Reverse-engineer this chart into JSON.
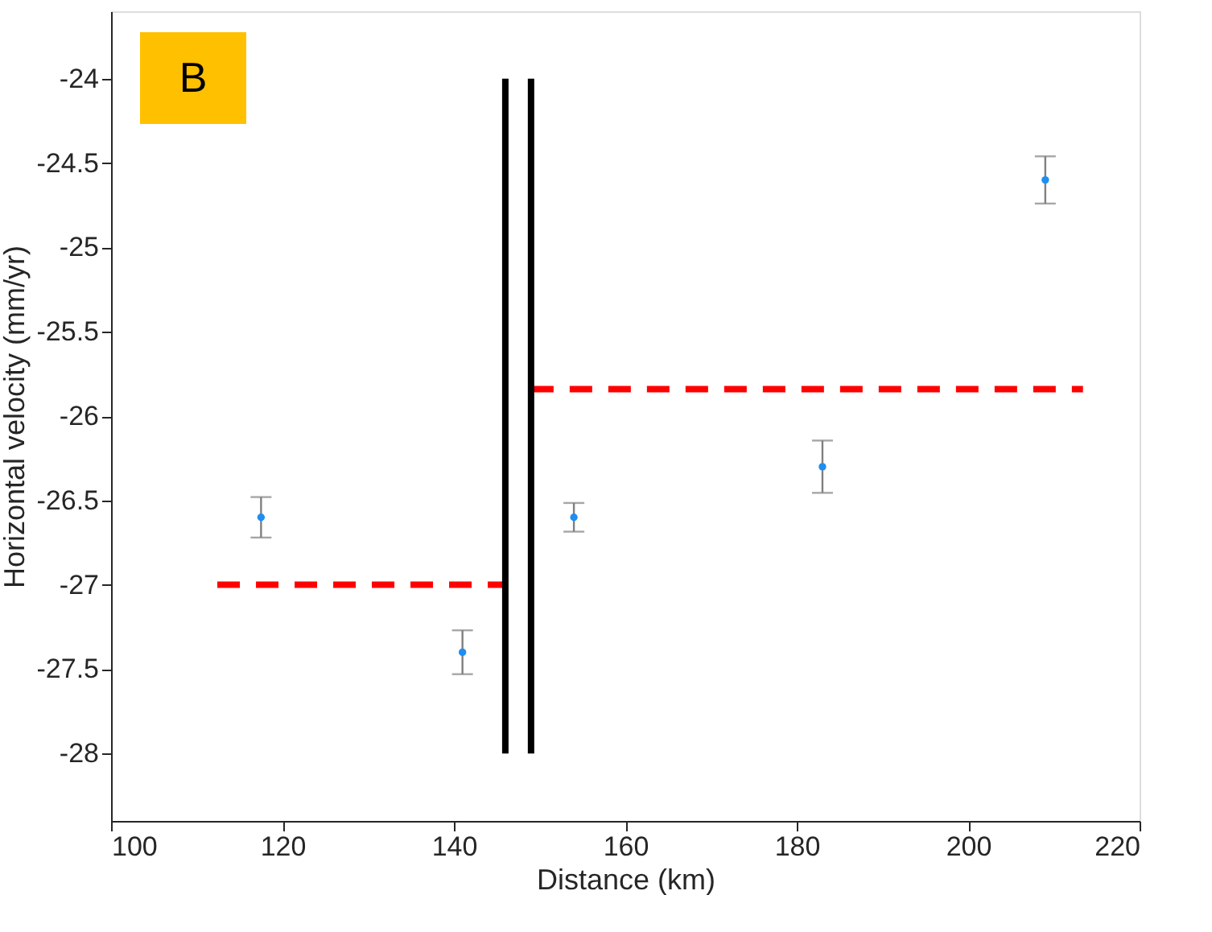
{
  "chart_data": {
    "type": "scatter",
    "xlabel": "Distance (km)",
    "ylabel": "Horizontal velocity (mm/yr)",
    "annotations": [
      "B"
    ],
    "xlim": [
      100,
      220
    ],
    "xticks": [
      100,
      120,
      140,
      160,
      180,
      200,
      220
    ],
    "ylim": [
      -28.4,
      -23.6
    ],
    "yticks": [
      -28,
      -27.5,
      -27,
      -26.5,
      -26,
      -25.5,
      -25,
      -24.5,
      -24
    ],
    "grid": false,
    "series": [
      {
        "type": "scatter",
        "color": "#1f8ef1",
        "x": [
          117.5,
          141,
          154,
          183,
          209
        ],
        "values": [
          -26.6,
          -27.4,
          -26.6,
          -26.3,
          -24.6
        ],
        "errors": [
          0.12,
          0.13,
          0.085,
          0.155,
          0.14
        ],
        "marker": "circle"
      },
      {
        "type": "line",
        "color": "#ff0000",
        "line_style": "dashed",
        "x": [
          112.4,
          146
        ],
        "values": [
          -27,
          -27
        ]
      },
      {
        "type": "line",
        "color": "#ff0000",
        "line_style": "dashed",
        "x": [
          149,
          213.4
        ],
        "values": [
          -25.84,
          -25.84
        ]
      },
      {
        "type": "line",
        "color": "#000000",
        "line_style": "solid",
        "x": [
          146,
          146
        ],
        "values": [
          -28,
          -24
        ]
      },
      {
        "type": "line",
        "color": "#000000",
        "line_style": "solid",
        "x": [
          149,
          149
        ],
        "values": [
          -28,
          -24
        ]
      }
    ]
  }
}
